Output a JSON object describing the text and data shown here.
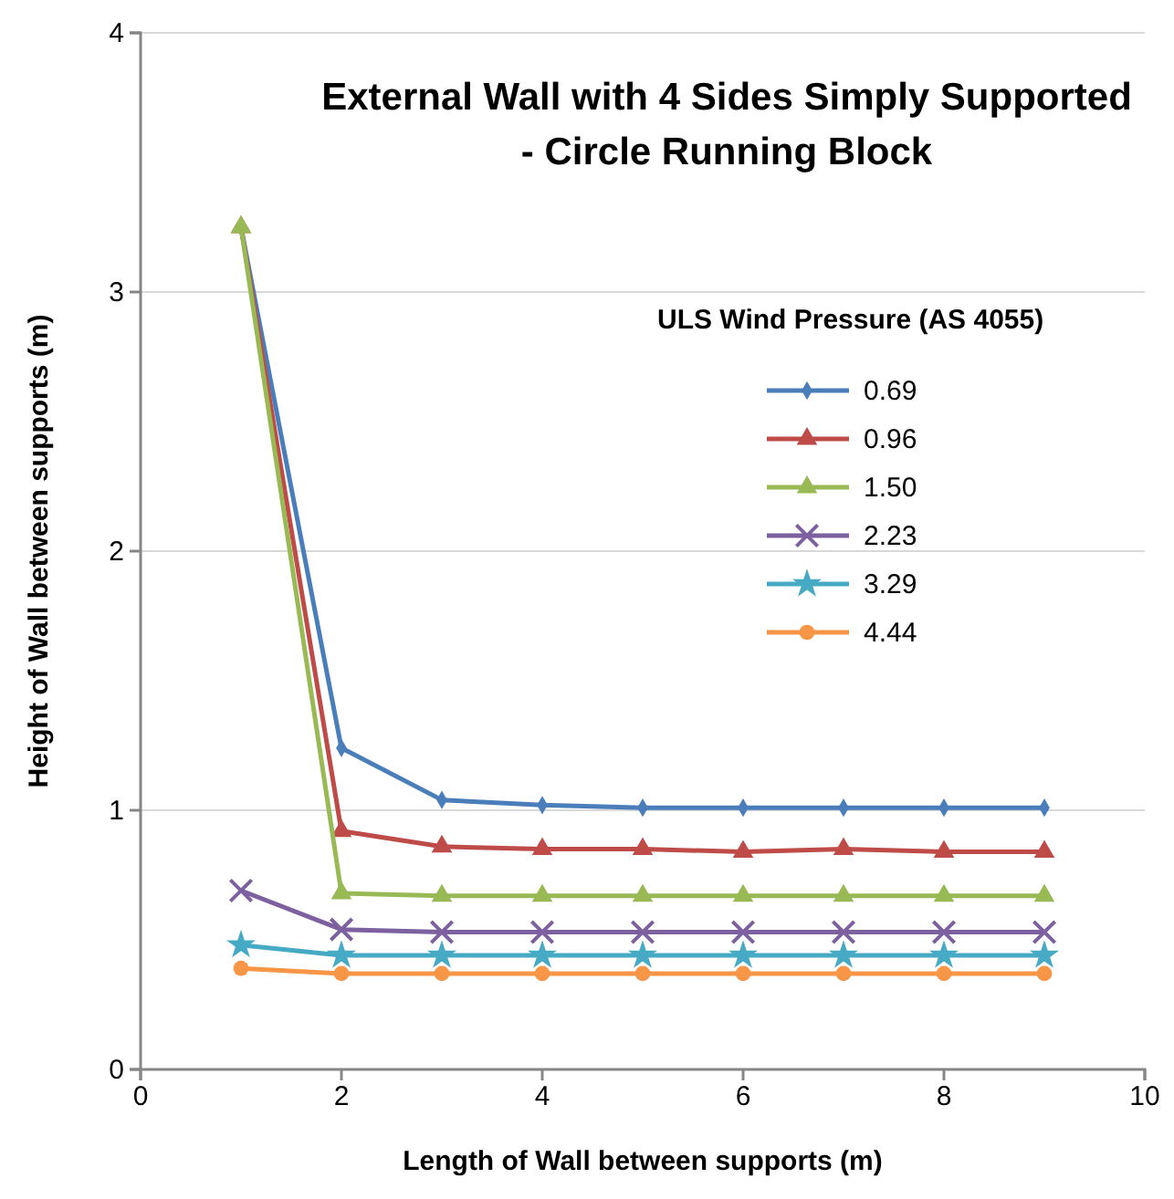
{
  "chart_data": {
    "type": "line",
    "title": "External Wall with 4 Sides Simply Supported - Circle Running Block",
    "xlabel": "Length of Wall between supports (m)",
    "ylabel": "Height of Wall between supports (m)",
    "legend_title": "ULS Wind Pressure (AS 4055)",
    "legend": "right",
    "grid": "y",
    "xlim": [
      0,
      10
    ],
    "xticks": [
      0,
      2,
      4,
      6,
      8,
      10
    ],
    "ylim": [
      0,
      4
    ],
    "yticks": [
      0,
      1,
      2,
      3,
      4
    ],
    "x": [
      1,
      2,
      3,
      4,
      5,
      6,
      7,
      8,
      9
    ],
    "series": [
      {
        "name": "0.69",
        "color": "#4a7ebb",
        "marker": "diamond",
        "values": [
          3.25,
          1.24,
          1.04,
          1.02,
          1.01,
          1.01,
          1.01,
          1.01,
          1.01
        ]
      },
      {
        "name": "0.96",
        "color": "#be4b48",
        "marker": "triangle",
        "values": [
          3.25,
          0.92,
          0.86,
          0.85,
          0.85,
          0.84,
          0.85,
          0.84,
          0.84
        ]
      },
      {
        "name": "1.50",
        "color": "#98b954",
        "marker": "triangle",
        "values": [
          3.25,
          0.68,
          0.67,
          0.67,
          0.67,
          0.67,
          0.67,
          0.67,
          0.67
        ]
      },
      {
        "name": "2.23",
        "color": "#7d60a0",
        "marker": "cross",
        "values": [
          0.69,
          0.54,
          0.53,
          0.53,
          0.53,
          0.53,
          0.53,
          0.53,
          0.53
        ]
      },
      {
        "name": "3.29",
        "color": "#46aac5",
        "marker": "star",
        "values": [
          0.48,
          0.44,
          0.44,
          0.44,
          0.44,
          0.44,
          0.44,
          0.44,
          0.44
        ]
      },
      {
        "name": "4.44",
        "color": "#f79646",
        "marker": "circle",
        "values": [
          0.39,
          0.37,
          0.37,
          0.37,
          0.37,
          0.37,
          0.37,
          0.37,
          0.37
        ]
      }
    ]
  }
}
